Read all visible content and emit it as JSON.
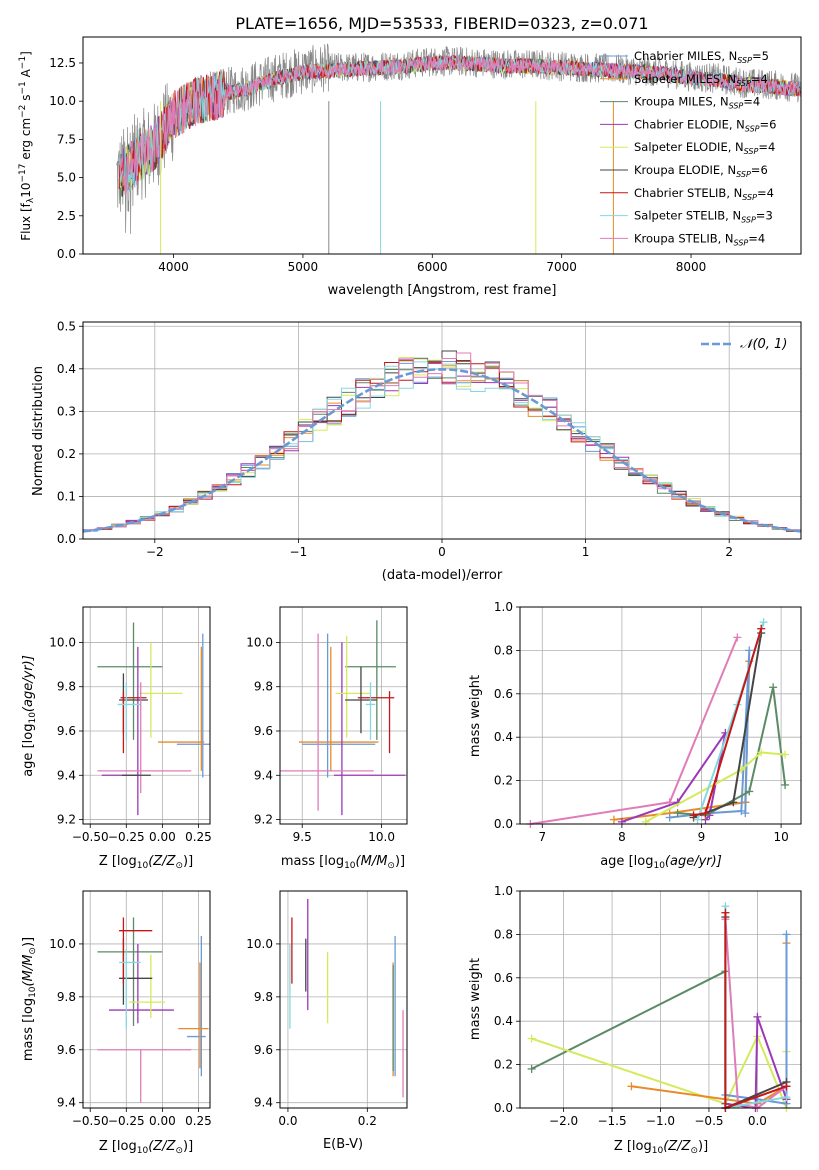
{
  "colors": {
    "c1": "#6a9ad6",
    "c2": "#e88a2a",
    "c3": "#5b8a66",
    "c4": "#9b38b6",
    "c5": "#d5ea5b",
    "c6": "#454545",
    "c7": "#c51717",
    "c8": "#86d8e0",
    "c9": "#e07cb8",
    "gaussian": "#6a9ad6"
  },
  "chart_data": [
    {
      "id": "spectrum",
      "type": "line",
      "title": "PLATE=1656, MJD=53533, FIBERID=0323, z=0.071",
      "xlabel": "wavelength [Angstrom, rest frame]",
      "ylabel_parts": [
        "Flux [f",
        "λ",
        "10",
        "−17",
        " erg cm",
        "−2",
        " s",
        "−1",
        " A",
        "−1",
        "]"
      ],
      "xlim": [
        3300,
        8850
      ],
      "ylim": [
        0,
        14.2
      ],
      "xticks": [
        "4000",
        "5000",
        "6000",
        "7000",
        "8000"
      ],
      "yticks": [
        "0.0",
        "2.5",
        "5.0",
        "7.5",
        "10.0",
        "12.5"
      ],
      "legend": [
        {
          "name": "Chabrier MILES",
          "nssp": "5"
        },
        {
          "name": "Salpeter MILES",
          "nssp": "4"
        },
        {
          "name": "Kroupa MILES",
          "nssp": "4"
        },
        {
          "name": "Chabrier ELODIE",
          "nssp": "6"
        },
        {
          "name": "Salpeter ELODIE",
          "nssp": "4"
        },
        {
          "name": "Kroupa ELODIE",
          "nssp": "6"
        },
        {
          "name": "Chabrier STELIB",
          "nssp": "4"
        },
        {
          "name": "Salpeter STELIB",
          "nssp": "3"
        },
        {
          "name": "Kroupa STELIB",
          "nssp": "4"
        }
      ],
      "data_series": {
        "name": "data (gray)",
        "x": [
          3580,
          3700,
          3850,
          4000,
          4200,
          4400,
          4600,
          4800,
          5000,
          5200,
          5400,
          5600,
          5800,
          6000,
          6200,
          6400,
          6600,
          6800,
          7000,
          7200,
          7400,
          7600,
          7800,
          8000,
          8200,
          8400,
          8600,
          8800
        ],
        "y": [
          5.0,
          6.2,
          7.0,
          9.0,
          10.2,
          10.6,
          11.0,
          11.6,
          12.0,
          12.2,
          12.2,
          12.3,
          12.4,
          12.6,
          12.6,
          12.5,
          12.4,
          12.4,
          12.3,
          12.2,
          12.1,
          12.0,
          11.9,
          11.6,
          11.5,
          11.2,
          11.1,
          10.9
        ]
      },
      "model_continuum": {
        "x": [
          3580,
          3700,
          3850,
          4000,
          4200,
          4400,
          4600,
          4800,
          5000,
          5200,
          5400,
          5600,
          5800,
          6000,
          6200,
          6400,
          6600,
          6800,
          7000,
          7200,
          7400,
          7600,
          7800,
          8000,
          8200,
          8400,
          8600,
          8800
        ],
        "y": [
          5.1,
          6.0,
          7.0,
          9.1,
          10.1,
          10.5,
          10.9,
          11.5,
          11.9,
          12.0,
          12.1,
          12.2,
          12.3,
          12.5,
          12.5,
          12.4,
          12.3,
          12.3,
          12.2,
          12.1,
          12.0,
          11.9,
          11.8,
          11.5,
          11.4,
          11.1,
          11.0,
          10.8
        ]
      }
    },
    {
      "id": "residual_hist",
      "type": "line",
      "xlabel": "(data-model)/error",
      "ylabel": "Normed distribution",
      "xlim": [
        -2.5,
        2.5
      ],
      "ylim": [
        0,
        0.51
      ],
      "xticks": [
        "−2",
        "−1",
        "0",
        "1",
        "2"
      ],
      "yticks": [
        "0.0",
        "0.1",
        "0.2",
        "0.3",
        "0.4",
        "0.5"
      ],
      "legend_label": "𝒩(0, 1)",
      "gaussian": {
        "mean": 0,
        "sigma": 1
      }
    },
    {
      "id": "age_vs_Z",
      "type": "scatter",
      "xlabel_parts": [
        "Z [log",
        "10",
        "(Z/Z",
        "⊙",
        ")]"
      ],
      "ylabel_parts": [
        "age  [log",
        "10",
        "(age/yr)]"
      ],
      "xlim": [
        -0.55,
        0.33
      ],
      "ylim": [
        9.18,
        10.16
      ],
      "xticks": [
        "−0.50",
        "−0.25",
        "0.00",
        "0.25"
      ],
      "yticks": [
        "9.2",
        "9.4",
        "9.6",
        "9.8",
        "10.0"
      ],
      "points": [
        {
          "c": "c1",
          "x": 0.28,
          "y": 9.54,
          "xe": 0.18,
          "ye": 0.14,
          "yhi": 0.5,
          "ylo": 0.15
        },
        {
          "c": "c2",
          "x": 0.27,
          "y": 9.55,
          "xlo": 0.3,
          "xhi": 0.02,
          "ylo": 0.13,
          "yhi": 0.43
        },
        {
          "c": "c3",
          "x": -0.2,
          "y": 9.89,
          "xlo": 0.25,
          "xhi": 0.2,
          "ylo": 0.33,
          "yhi": 0.2
        },
        {
          "c": "c4",
          "x": -0.17,
          "y": 9.4,
          "xlo": 0.25,
          "xhi": 0.0,
          "ylo": 0.18,
          "yhi": 0.58
        },
        {
          "c": "c5",
          "x": -0.08,
          "y": 9.77,
          "xlo": 0.08,
          "xhi": 0.22,
          "ylo": 0.2,
          "yhi": 0.23
        },
        {
          "c": "c6",
          "x": -0.27,
          "y": 9.74,
          "xlo": 0.03,
          "xhi": 0.17,
          "ylo": 0.15,
          "yhi": 0.12
        },
        {
          "c": "c7",
          "x": -0.27,
          "y": 9.75,
          "xlo": 0.02,
          "xhi": 0.16,
          "ylo": 0.25,
          "yhi": 0.03
        },
        {
          "c": "c8",
          "x": -0.25,
          "y": 9.72,
          "xlo": 0.06,
          "xhi": 0.1,
          "ylo": 0.16,
          "yhi": 0.1
        },
        {
          "c": "c9",
          "x": -0.15,
          "y": 9.42,
          "xlo": 0.3,
          "xhi": 0.35,
          "ylo": 0.1,
          "yhi": 0.4
        },
        {
          "c": "c6",
          "x": -0.08,
          "y": 9.4,
          "xlo": 0.2,
          "xhi": 0.0,
          "ylo": 0.0,
          "yhi": 0.0
        }
      ]
    },
    {
      "id": "age_vs_mass",
      "type": "scatter",
      "xlabel_parts": [
        "mass [log",
        "10",
        "(M/M",
        "⊙",
        ")]"
      ],
      "xlim": [
        9.36,
        10.16
      ],
      "ylim": [
        9.18,
        10.16
      ],
      "xticks": [
        "9.5",
        "10.0"
      ],
      "yticks": [
        "9.2",
        "9.4",
        "9.6",
        "9.8",
        "10.0"
      ],
      "points": [
        {
          "c": "c1",
          "x": 9.66,
          "y": 9.54,
          "xlo": 0.16,
          "xhi": 0.3,
          "ylo": 0.15,
          "yhi": 0.5
        },
        {
          "c": "c2",
          "x": 9.68,
          "y": 9.55,
          "xlo": 0.2,
          "xhi": 0.3,
          "ylo": 0.13,
          "yhi": 0.43
        },
        {
          "c": "c3",
          "x": 9.97,
          "y": 9.89,
          "xlo": 0.2,
          "xhi": 0.12,
          "ylo": 0.33,
          "yhi": 0.21
        },
        {
          "c": "c4",
          "x": 9.75,
          "y": 9.4,
          "xlo": 0.05,
          "xhi": 0.4,
          "ylo": 0.18,
          "yhi": 0.6
        },
        {
          "c": "c5",
          "x": 9.78,
          "y": 9.77,
          "xlo": 0.07,
          "xhi": 0.15,
          "ylo": 0.2,
          "yhi": 0.26
        },
        {
          "c": "c6",
          "x": 9.87,
          "y": 9.74,
          "xlo": 0.1,
          "xhi": 0.1,
          "ylo": 0.15,
          "yhi": 0.15
        },
        {
          "c": "c7",
          "x": 10.05,
          "y": 9.75,
          "xlo": 0.2,
          "xhi": 0.03,
          "ylo": 0.25,
          "yhi": 0.03
        },
        {
          "c": "c8",
          "x": 9.93,
          "y": 9.72,
          "xlo": 0.03,
          "xhi": 0.03,
          "ylo": 0.16,
          "yhi": 0.1
        },
        {
          "c": "c9",
          "x": 9.6,
          "y": 9.42,
          "xlo": 0.25,
          "xhi": 0.35,
          "ylo": 0.18,
          "yhi": 0.62
        }
      ]
    },
    {
      "id": "weight_vs_age",
      "type": "line",
      "xlabel_parts": [
        "age  [log",
        "10",
        "(age/yr)]"
      ],
      "ylabel": "mass weight",
      "xlim": [
        6.72,
        10.25
      ],
      "ylim": [
        0,
        1.0
      ],
      "xticks": [
        "7",
        "8",
        "9",
        "10"
      ],
      "yticks": [
        "0.0",
        "0.2",
        "0.4",
        "0.6",
        "0.8",
        "1.0"
      ],
      "series": [
        {
          "c": "c9",
          "x": [
            6.85,
            8.6,
            9.45
          ],
          "y": [
            0.0,
            0.1,
            0.86
          ]
        },
        {
          "c": "c2",
          "x": [
            7.9,
            8.6,
            9.55,
            9.6,
            9.55
          ],
          "y": [
            0.02,
            0.05,
            0.1,
            0.75,
            0.1
          ]
        },
        {
          "c": "c1",
          "x": [
            8.6,
            9.1,
            9.5,
            9.6,
            9.55
          ],
          "y": [
            0.03,
            0.05,
            0.06,
            0.8,
            0.05
          ]
        },
        {
          "c": "c4",
          "x": [
            8.0,
            8.7,
            9.3,
            9.1,
            9.05
          ],
          "y": [
            0.01,
            0.1,
            0.42,
            0.04,
            0.02
          ]
        },
        {
          "c": "c3",
          "x": [
            8.7,
            9.05,
            9.6,
            9.9,
            10.05
          ],
          "y": [
            0.05,
            0.04,
            0.15,
            0.63,
            0.18
          ]
        },
        {
          "c": "c5",
          "x": [
            8.3,
            9.5,
            9.75,
            10.05
          ],
          "y": [
            0.01,
            0.25,
            0.33,
            0.32
          ]
        },
        {
          "c": "c6",
          "x": [
            8.9,
            9.4,
            9.75
          ],
          "y": [
            0.03,
            0.1,
            0.88
          ]
        },
        {
          "c": "c8",
          "x": [
            8.95,
            9.45,
            9.78
          ],
          "y": [
            0.02,
            0.55,
            0.93
          ]
        },
        {
          "c": "c7",
          "x": [
            8.9,
            9.05,
            9.75
          ],
          "y": [
            0.04,
            0.05,
            0.9
          ]
        }
      ]
    },
    {
      "id": "mass_vs_Z",
      "type": "scatter",
      "xlabel_parts": [
        "Z [log",
        "10",
        "(Z/Z",
        "⊙",
        ")]"
      ],
      "ylabel_parts": [
        "mass [log",
        "10",
        "(M/M",
        "⊙",
        ")]"
      ],
      "xlim": [
        -0.55,
        0.33
      ],
      "ylim": [
        9.38,
        10.2
      ],
      "xticks": [
        "−0.50",
        "−0.25",
        "0.00",
        "0.25"
      ],
      "yticks": [
        "9.4",
        "9.6",
        "9.8",
        "10.0"
      ],
      "points": [
        {
          "c": "c1",
          "x": 0.27,
          "y": 9.65,
          "xlo": 0.1,
          "xhi": 0.03,
          "ylo": 0.15,
          "yhi": 0.38
        },
        {
          "c": "c2",
          "x": 0.26,
          "y": 9.68,
          "xlo": 0.15,
          "xhi": 0.06,
          "ylo": 0.15,
          "yhi": 0.25
        },
        {
          "c": "c3",
          "x": -0.2,
          "y": 9.97,
          "xlo": 0.25,
          "xhi": 0.2,
          "ylo": 0.28,
          "yhi": 0.13
        },
        {
          "c": "c4",
          "x": -0.17,
          "y": 9.75,
          "xlo": 0.2,
          "xhi": 0.25,
          "ylo": 0.05,
          "yhi": 0.25
        },
        {
          "c": "c5",
          "x": -0.08,
          "y": 9.78,
          "xlo": 0.15,
          "xhi": 0.1,
          "ylo": 0.06,
          "yhi": 0.18
        },
        {
          "c": "c6",
          "x": -0.27,
          "y": 9.87,
          "xlo": 0.03,
          "xhi": 0.2,
          "ylo": 0.1,
          "yhi": 0.15
        },
        {
          "c": "c7",
          "x": -0.27,
          "y": 10.05,
          "xlo": 0.03,
          "xhi": 0.2,
          "ylo": 0.2,
          "yhi": 0.05
        },
        {
          "c": "c8",
          "x": -0.25,
          "y": 9.93,
          "xlo": 0.05,
          "xhi": 0.1,
          "ylo": 0.25,
          "yhi": 0.05
        },
        {
          "c": "c9",
          "x": -0.15,
          "y": 9.6,
          "xlo": 0.3,
          "xhi": 0.35,
          "ylo": 0.2,
          "yhi": 0.0
        }
      ]
    },
    {
      "id": "mass_vs_EBV",
      "type": "scatter",
      "xlabel": "E(B-V)",
      "xlim": [
        -0.02,
        0.3
      ],
      "ylim": [
        9.38,
        10.2
      ],
      "xticks": [
        "0.0",
        "0.2"
      ],
      "yticks": [
        "9.4",
        "9.6",
        "9.8",
        "10.0"
      ],
      "points": [
        {
          "c": "c1",
          "x": 0.27,
          "y": 9.65,
          "ylo": 0.15,
          "yhi": 0.38
        },
        {
          "c": "c2",
          "x": 0.265,
          "y": 9.7,
          "ylo": 0.2,
          "yhi": 0.23
        },
        {
          "c": "c3",
          "x": 0.265,
          "y": 9.72,
          "ylo": 0.2,
          "yhi": 0.2
        },
        {
          "c": "c4",
          "x": 0.05,
          "y": 9.9,
          "ylo": 0.15,
          "yhi": 0.27
        },
        {
          "c": "c5",
          "x": 0.1,
          "y": 9.84,
          "ylo": 0.14,
          "yhi": 0.13
        },
        {
          "c": "c6",
          "x": 0.045,
          "y": 9.92,
          "ylo": 0.1,
          "yhi": 0.1
        },
        {
          "c": "c7",
          "x": 0.01,
          "y": 9.95,
          "ylo": 0.1,
          "yhi": 0.15
        },
        {
          "c": "c8",
          "x": 0.005,
          "y": 9.88,
          "ylo": 0.2,
          "yhi": 0.12
        },
        {
          "c": "c9",
          "x": 0.29,
          "y": 9.6,
          "ylo": 0.18,
          "yhi": 0.15
        }
      ]
    },
    {
      "id": "weight_vs_Z",
      "type": "line",
      "xlabel_parts": [
        "Z [log",
        "10",
        "(Z/Z",
        "⊙",
        ")]"
      ],
      "ylabel": "mass weight",
      "xlim": [
        -2.45,
        0.45
      ],
      "ylim": [
        0,
        1.0
      ],
      "xticks": [
        "−2.0",
        "−1.5",
        "−1.0",
        "−0.5",
        "0.0"
      ],
      "yticks": [
        "0.0",
        "0.2",
        "0.4",
        "0.6",
        "0.8",
        "1.0"
      ],
      "series": [
        {
          "c": "c3",
          "x": [
            -2.33,
            -0.33,
            -0.33
          ],
          "y": [
            0.18,
            0.63,
            0.0
          ]
        },
        {
          "c": "c5",
          "x": [
            -2.33,
            -0.33,
            0.0,
            0.3,
            0.3
          ],
          "y": [
            0.32,
            0.02,
            0.33,
            0.0,
            0.26
          ]
        },
        {
          "c": "c2",
          "x": [
            -1.3,
            0.0,
            0.3,
            0.3
          ],
          "y": [
            0.1,
            0.02,
            0.1,
            0.76
          ]
        },
        {
          "c": "c1",
          "x": [
            -0.33,
            0.0,
            0.3,
            0.3
          ],
          "y": [
            0.06,
            0.04,
            0.02,
            0.8
          ]
        },
        {
          "c": "c4",
          "x": [
            -0.33,
            -0.02,
            0.0,
            0.3
          ],
          "y": [
            0.02,
            0.0,
            0.42,
            0.04
          ]
        },
        {
          "c": "c9",
          "x": [
            -0.33,
            -0.2,
            0.0,
            0.3
          ],
          "y": [
            0.87,
            0.02,
            0.0,
            0.1
          ]
        },
        {
          "c": "c6",
          "x": [
            -0.33,
            -0.33,
            0.3
          ],
          "y": [
            0.88,
            0.0,
            0.12
          ]
        },
        {
          "c": "c8",
          "x": [
            -0.33,
            -0.33,
            0.3
          ],
          "y": [
            0.93,
            0.0,
            0.05
          ]
        },
        {
          "c": "c7",
          "x": [
            -0.33,
            -0.33,
            0.3
          ],
          "y": [
            0.9,
            0.0,
            0.1
          ]
        }
      ]
    }
  ]
}
